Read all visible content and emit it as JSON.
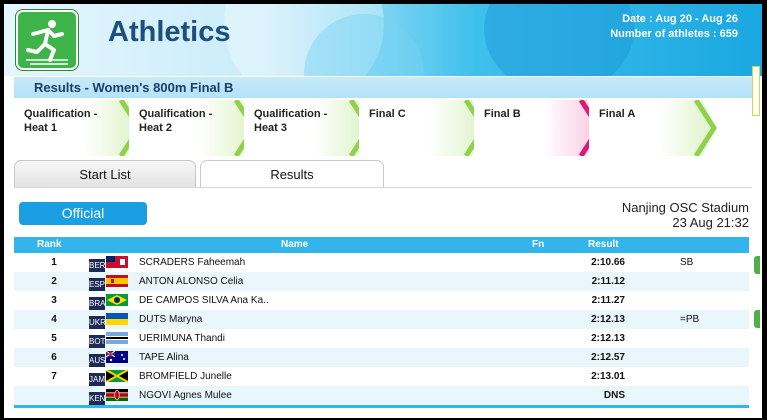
{
  "header": {
    "title": "Athletics",
    "date_label": "Date : Aug 20 - Aug 26",
    "athletes_label": "Number of athletes : 659",
    "logo_icon": "athletics-runner-icon"
  },
  "banner": {
    "title": "Results - Women's 800m Final B"
  },
  "phases": [
    {
      "label": "Qualification -\nHeat 1",
      "active": false
    },
    {
      "label": "Qualification -\nHeat 2",
      "active": false
    },
    {
      "label": "Qualification -\nHeat 3",
      "active": false
    },
    {
      "label": "Final C",
      "active": false
    },
    {
      "label": "Final B",
      "active": true
    },
    {
      "label": "Final A",
      "active": false
    }
  ],
  "tabs": {
    "start_list": "Start List",
    "results": "Results"
  },
  "status": {
    "official": "Official"
  },
  "venue": {
    "name": "Nanjing OSC Stadium",
    "datetime": "23 Aug 21:32"
  },
  "table": {
    "headers": {
      "rank": "Rank",
      "name": "Name",
      "fn": "Fn",
      "result": "Result"
    },
    "rows": [
      {
        "rank": "1",
        "noc": "BER",
        "name": "SCRADERS Faheemah",
        "result": "2:10.66",
        "note": "SB"
      },
      {
        "rank": "2",
        "noc": "ESP",
        "name": "ANTON ALONSO Celia",
        "result": "2:11.12",
        "note": ""
      },
      {
        "rank": "3",
        "noc": "BRA",
        "name": "DE CAMPOS SILVA Ana Ka..",
        "result": "2:11.27",
        "note": ""
      },
      {
        "rank": "4",
        "noc": "UKR",
        "name": "DUTS Maryna",
        "result": "2:12.13",
        "note": "=PB"
      },
      {
        "rank": "5",
        "noc": "BOT",
        "name": "UERIMUNA Thandi",
        "result": "2:12.13",
        "note": ""
      },
      {
        "rank": "6",
        "noc": "AUS",
        "name": "TAPE Alina",
        "result": "2:12.57",
        "note": ""
      },
      {
        "rank": "7",
        "noc": "JAM",
        "name": "BROMFIELD Junelle",
        "result": "2:13.01",
        "note": ""
      },
      {
        "rank": "",
        "noc": "KEN",
        "name": "NGOVI Agnes Mulee",
        "result": "DNS",
        "note": ""
      }
    ]
  },
  "colors": {
    "accent": "#33b4ea",
    "title": "#1c4e7e",
    "phase_arrow": "#8ed14b",
    "phase_active": "#d81b7a"
  }
}
